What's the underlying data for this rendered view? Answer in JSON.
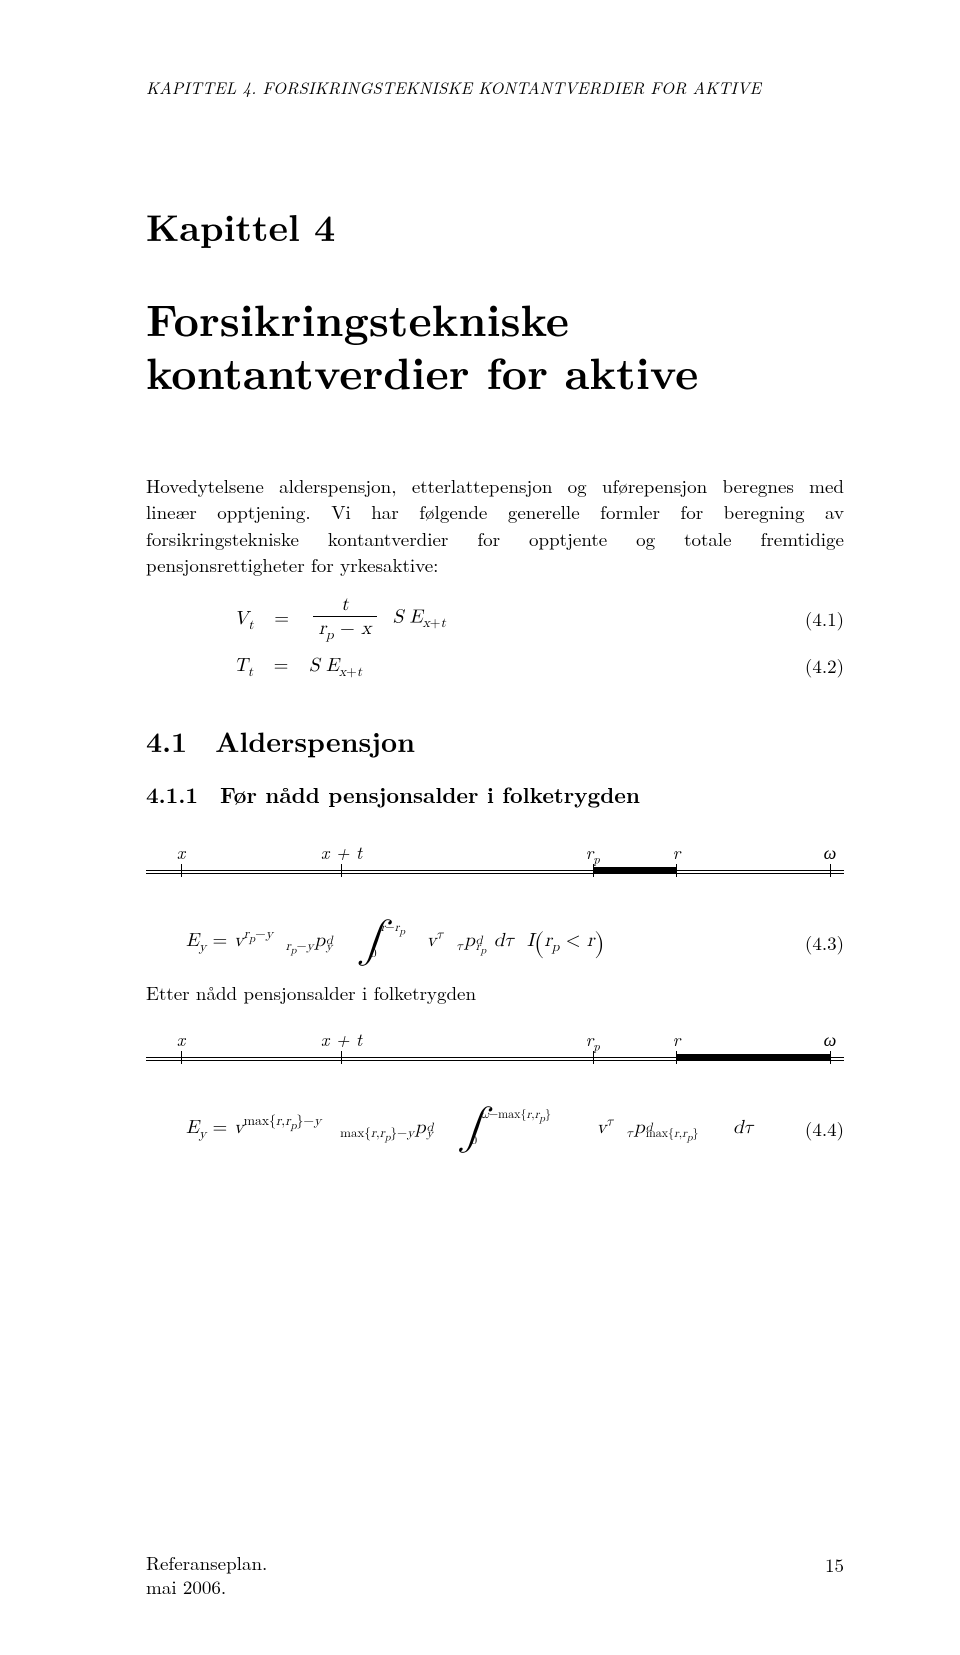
{
  "running_header": "KAPITTEL 4. FORSIKRINGSTEKNISKE KONTANTVERDIER FOR AKTIVE",
  "chapter_label": "Kapittel 4",
  "chapter_title_l1": "Forsikringstekniske",
  "chapter_title_l2": "kontantverdier for aktive",
  "intro_para": "Hovedytelsene alderspensjon, etterlattepensjon og uførepensjon beregnes med lineær opptjening. Vi har følgende generelle formler for beregning av forsikringstekniske kontantverdier for opptjente og totale fremtidige pensjonsrettigheter for yrkesaktive:",
  "eq41_num": "(4.1)",
  "eq42_num": "(4.2)",
  "eq43_num": "(4.3)",
  "eq44_num": "(4.4)",
  "sec_41": "4.1 Alderspensjon",
  "subsec_411": "4.1.1 Før nådd pensjonsalder i folketrygden",
  "after_43": "Etter nådd pensjonsalder i folketrygden",
  "timeline_labels": {
    "x": "x",
    "xt": "x + t",
    "rp": "r",
    "r": "r",
    "omega": "ω"
  },
  "timeline1": {
    "ticks_pct": [
      5.0,
      28.0,
      64.0,
      76.0,
      98.0
    ],
    "seg_start_pct": 64.0,
    "seg_end_pct": 76.0
  },
  "timeline2": {
    "ticks_pct": [
      5.0,
      28.0,
      64.0,
      76.0,
      98.0
    ],
    "seg_start_pct": 76.0,
    "seg_end_pct": 98.0
  },
  "footer_l1": "Referanseplan.",
  "footer_l2": "mai 2006.",
  "footer_page": "15",
  "colors": {
    "text": "#000000",
    "bg": "#ffffff",
    "line": "#000000"
  }
}
